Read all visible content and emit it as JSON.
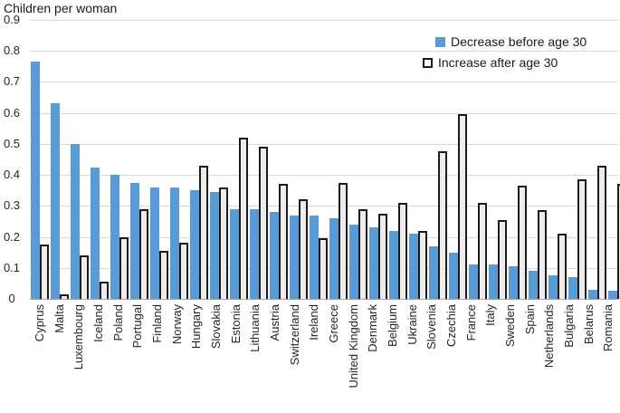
{
  "chart_data": {
    "type": "bar",
    "title": "Children per woman",
    "categories": [
      "Cyprus",
      "Malta",
      "Luxembourg",
      "Iceland",
      "Poland",
      "Portugal",
      "Finland",
      "Norway",
      "Hungary",
      "Slovakia",
      "Estonia",
      "Lithuania",
      "Austria",
      "Switzerland",
      "Ireland",
      "Greece",
      "United Kingdom",
      "Denmark",
      "Belgium",
      "Ukraine",
      "Slovenia",
      "Czechia",
      "France",
      "Italy",
      "Sweden",
      "Spain",
      "Netherlands",
      "Bulgaria",
      "Belarus",
      "Romania"
    ],
    "series": [
      {
        "name": "Decrease before age 30",
        "color": "#5b9bd5",
        "values": [
          0.765,
          0.63,
          0.5,
          0.425,
          0.4,
          0.375,
          0.36,
          0.36,
          0.35,
          0.345,
          0.29,
          0.29,
          0.28,
          0.27,
          0.27,
          0.26,
          0.24,
          0.23,
          0.22,
          0.21,
          0.17,
          0.15,
          0.11,
          0.11,
          0.105,
          0.09,
          0.075,
          0.07,
          0.03,
          0.025
        ]
      },
      {
        "name": "Increase after age 30",
        "color": "#ececec",
        "border_color": "#1a1a1a",
        "values": [
          0.175,
          0.015,
          0.14,
          0.055,
          0.2,
          0.29,
          0.155,
          0.18,
          0.43,
          0.36,
          0.52,
          0.49,
          0.37,
          0.32,
          0.195,
          0.375,
          0.29,
          0.275,
          0.31,
          0.22,
          0.475,
          0.595,
          0.31,
          0.255,
          0.365,
          0.285,
          0.21,
          0.385,
          0.43,
          0.37
        ]
      }
    ],
    "ylim": [
      0,
      0.9
    ],
    "ytick_step": 0.1,
    "ytick_labels": [
      "0",
      "0.1",
      "0.2",
      "0.3",
      "0.4",
      "0.5",
      "0.6",
      "0.7",
      "0.8",
      "0.9"
    ],
    "xlabel": "",
    "ylabel": "",
    "grid": true,
    "gridline_color": "#d9d9d9",
    "axis_color": "#a6a6a6",
    "legend_position": "top-right",
    "x_label_rotation": 90
  }
}
